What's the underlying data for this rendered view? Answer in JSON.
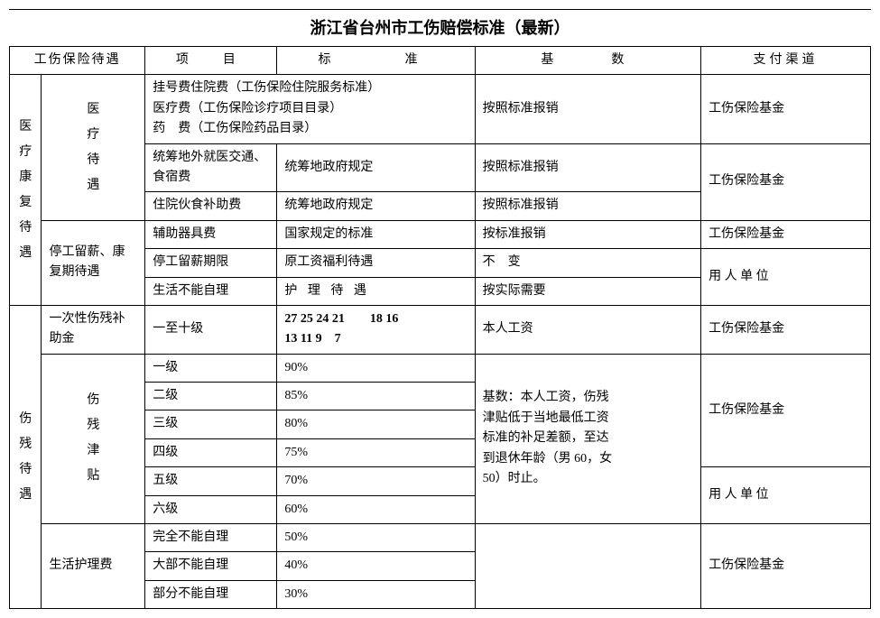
{
  "title": "浙江省台州市工伤赔偿标准（最新）",
  "header": {
    "category": "工伤保险待遇",
    "project": "项　目",
    "standard": "标　　准",
    "base": "基　　数",
    "channel": "支付渠道"
  },
  "groupA": {
    "vertical": "医疗康复待遇",
    "section1": {
      "label": "医疗待遇",
      "row1": {
        "l1": "挂号费住院费（工伤保险住院服务标准）",
        "l2": "医疗费（工伤保险诊疗项目目录）",
        "l3": "药　费（工伤保险药品目录）",
        "base": "按照标准报销",
        "channel": "工伤保险基金"
      },
      "row2": {
        "project": "统筹地外就医交通、食宿费",
        "standard": "统筹地政府规定",
        "base": "按照标准报销"
      },
      "row3": {
        "project": "住院伙食补助费",
        "standard": "统筹地政府规定",
        "base": "按照标准报销"
      },
      "row23channel": "工伤保险基金"
    },
    "section2": {
      "label": "停工留薪、康复期待遇",
      "row4": {
        "project": "辅助器具费",
        "standard": "国家规定的标准",
        "base": "按标准报销",
        "channel": "工伤保险基金"
      },
      "row5": {
        "project": "停工留薪期限",
        "standard": "原工资福利待遇",
        "base": "不　变"
      },
      "row6": {
        "project": "生活不能自理",
        "standard": "护 理 待 遇",
        "base": "按实际需要"
      },
      "row56channel": "用 人 单 位"
    }
  },
  "groupB": {
    "vertical": "伤残待遇",
    "section1": {
      "label": "一次性伤残补助金",
      "row1": {
        "project": "一至十级",
        "standard_l1": "27 25 24 21　　18 16",
        "standard_l2": "13 11 9　7",
        "base": "本人工资",
        "channel": "工伤保险基金"
      }
    },
    "section2": {
      "label": "伤残津贴",
      "row1": {
        "project": "一级",
        "standard": "90%"
      },
      "row2": {
        "project": "二级",
        "standard": "85%"
      },
      "row3": {
        "project": "三级",
        "standard": "80%"
      },
      "row4": {
        "project": "四级",
        "standard": "75%"
      },
      "row5": {
        "project": "五级",
        "standard": "70%"
      },
      "row6": {
        "project": "六级",
        "standard": "60%"
      },
      "base_l1": "基数：本人工资，伤残",
      "base_l2": "津贴低于当地最低工资",
      "base_l3": "标准的补足差额，至达",
      "base_l4": "到退休年龄（男 60，女",
      "base_l5": "50）时止。",
      "channel14": "工伤保险基金",
      "channel56": "用 人 单 位"
    },
    "section3": {
      "label": "生活护理费",
      "row1": {
        "project": "完全不能自理",
        "standard": "50%"
      },
      "row2": {
        "project": "大部不能自理",
        "standard": "40%"
      },
      "row3": {
        "project": "部分不能自理",
        "standard": "30%"
      },
      "channel": "工伤保险基金"
    }
  }
}
